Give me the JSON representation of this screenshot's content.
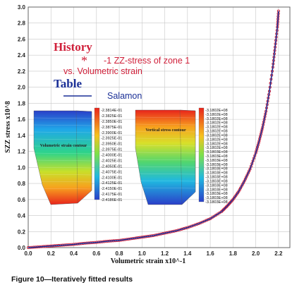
{
  "caption": "Figure 10—Iteratively fitted results",
  "legend": {
    "history": "History",
    "star": "*",
    "series1_line1": "-1 ZZ-stress of zone 1",
    "series1_line2": "vs. Volumetric strain",
    "table": "Table",
    "series2": "Salamon"
  },
  "inset_left": {
    "title": "Volumetric strain contour",
    "colorbar": [
      "-2.3814E-01",
      "-2.3825E-01",
      "-2.3850E-01",
      "-2.3875E-01",
      "-2.3900E-01",
      "-2.3925E-01",
      "-2.3950E-01",
      "-2.3975E-01",
      "-2.4000E-01",
      "-2.4025E-01",
      "-2.4050E-01",
      "-2.4075E-01",
      "-2.4100E-01",
      "-2.4125E-01",
      "-2.4150E-01",
      "-2.4175E-01",
      "-2.4186E-01"
    ]
  },
  "inset_right": {
    "title": "Vertical stress contour",
    "colorbar": [
      "-3.1802E+08",
      "-3.1802E+08",
      "-3.1802E+08",
      "-3.1802E+08",
      "-3.1802E+08",
      "-3.1802E+08",
      "-3.1802E+08",
      "-3.1802E+08",
      "-3.1802E+08",
      "-3.1802E+08",
      "-3.1803E+08",
      "-3.1803E+08",
      "-3.1803E+08",
      "-3.1803E+08",
      "-3.1803E+08",
      "-3.1803E+08",
      "-3.1803E+08",
      "-3.1803E+08",
      "-3.1803E+08",
      "-3.1803E+08",
      "-3.1803E+08",
      "-3.1803E+08",
      "-3.1803E+08"
    ]
  },
  "colors": {
    "history": "#d0203a",
    "salamon": "#1a2f96",
    "grid": "#c8c8c8"
  },
  "chart_data": {
    "type": "line",
    "title": "",
    "xlabel": "Volumetric strain x10^-1",
    "ylabel": "SZZ stress x10^8",
    "xlim": [
      0,
      2.3
    ],
    "ylim": [
      0,
      3.0
    ],
    "xticks": [
      "0.0",
      "0.2",
      "0.4",
      "0.6",
      "0.8",
      "1.0",
      "1.2",
      "1.4",
      "1.6",
      "1.8",
      "2.0",
      "2.2"
    ],
    "yticks": [
      "0.0",
      "0.2",
      "0.4",
      "0.6",
      "0.8",
      "1.0",
      "1.2",
      "1.4",
      "1.6",
      "1.8",
      "2.0",
      "2.2",
      "2.4",
      "2.6",
      "2.8",
      "3.0"
    ],
    "grid": true,
    "series": [
      {
        "name": "-1 ZZ-stress of zone 1 vs. Volumetric strain",
        "style": "markers",
        "x": [
          0.0,
          0.1,
          0.2,
          0.3,
          0.4,
          0.5,
          0.6,
          0.7,
          0.8,
          0.9,
          1.0,
          1.1,
          1.2,
          1.3,
          1.4,
          1.5,
          1.6,
          1.7,
          1.75,
          1.8,
          1.85,
          1.9,
          1.95,
          2.0,
          2.03,
          2.06,
          2.09,
          2.12,
          2.15,
          2.17,
          2.19,
          2.2
        ],
        "y": [
          0.0,
          0.01,
          0.02,
          0.03,
          0.04,
          0.055,
          0.065,
          0.08,
          0.09,
          0.11,
          0.13,
          0.15,
          0.18,
          0.21,
          0.25,
          0.3,
          0.36,
          0.45,
          0.52,
          0.6,
          0.7,
          0.83,
          0.98,
          1.18,
          1.33,
          1.5,
          1.7,
          1.95,
          2.25,
          2.5,
          2.75,
          2.95
        ]
      },
      {
        "name": "Salamon",
        "style": "line",
        "x": [
          0.0,
          0.1,
          0.2,
          0.3,
          0.4,
          0.5,
          0.6,
          0.7,
          0.8,
          0.9,
          1.0,
          1.1,
          1.2,
          1.3,
          1.4,
          1.5,
          1.6,
          1.7,
          1.75,
          1.8,
          1.85,
          1.9,
          1.95,
          2.0,
          2.03,
          2.06,
          2.09,
          2.12,
          2.15,
          2.17,
          2.19,
          2.2
        ],
        "y": [
          0.0,
          0.01,
          0.02,
          0.03,
          0.04,
          0.055,
          0.065,
          0.08,
          0.09,
          0.11,
          0.13,
          0.15,
          0.18,
          0.21,
          0.25,
          0.3,
          0.36,
          0.45,
          0.52,
          0.6,
          0.7,
          0.83,
          0.98,
          1.18,
          1.33,
          1.5,
          1.7,
          1.95,
          2.25,
          2.5,
          2.75,
          2.95
        ]
      }
    ]
  }
}
